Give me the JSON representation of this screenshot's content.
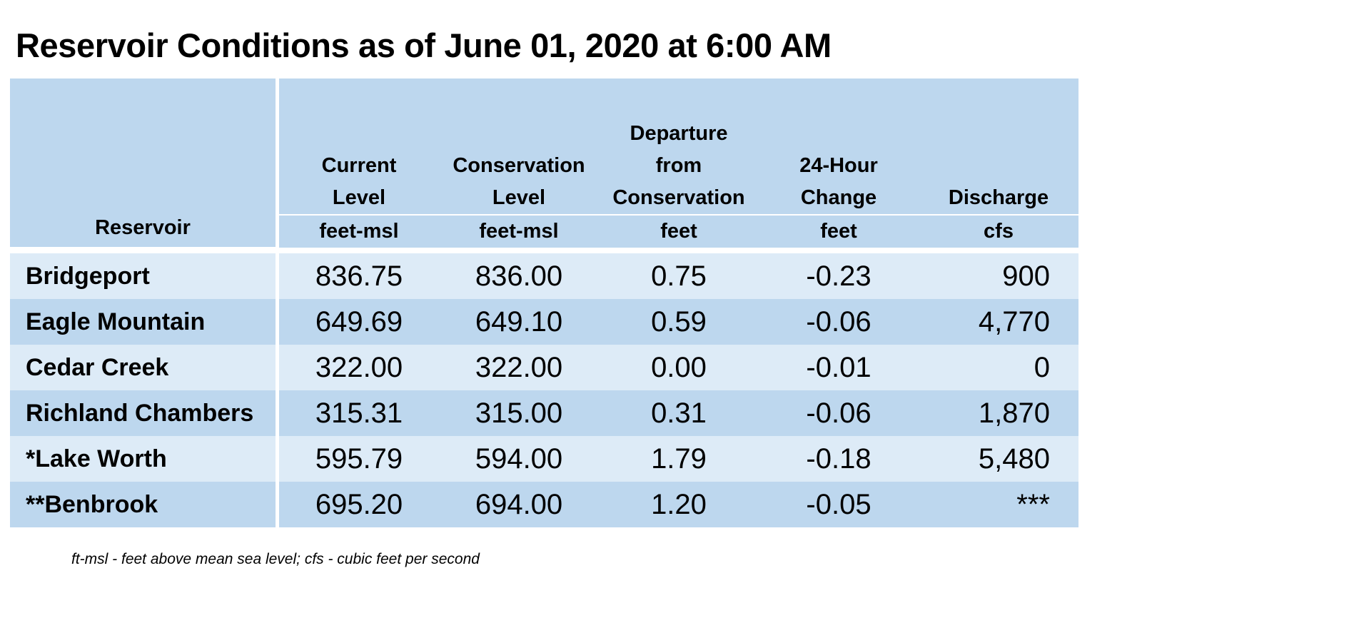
{
  "title": "Reservoir Conditions as of June 01, 2020 at 6:00 AM",
  "table": {
    "columns": [
      {
        "header": "Reservoir",
        "unit": ""
      },
      {
        "header_lines": [
          "Current",
          "Level"
        ],
        "unit": "feet-msl"
      },
      {
        "header_lines": [
          "Conservation",
          "Level"
        ],
        "unit": "feet-msl"
      },
      {
        "header_lines": [
          "Departure",
          "from",
          "Conservation"
        ],
        "unit": "feet"
      },
      {
        "header_lines": [
          "24-Hour",
          "Change"
        ],
        "unit": "feet"
      },
      {
        "header_lines": [
          "Discharge"
        ],
        "unit": "cfs"
      }
    ],
    "rows": [
      {
        "reservoir": "Bridgeport",
        "current": "836.75",
        "conservation": "836.00",
        "departure": "0.75",
        "change": "-0.23",
        "discharge": "900"
      },
      {
        "reservoir": "Eagle Mountain",
        "current": "649.69",
        "conservation": "649.10",
        "departure": "0.59",
        "change": "-0.06",
        "discharge": "4,770"
      },
      {
        "reservoir": "Cedar Creek",
        "current": "322.00",
        "conservation": "322.00",
        "departure": "0.00",
        "change": "-0.01",
        "discharge": "0"
      },
      {
        "reservoir": "Richland Chambers",
        "current": "315.31",
        "conservation": "315.00",
        "departure": "0.31",
        "change": "-0.06",
        "discharge": "1,870"
      },
      {
        "reservoir": "*Lake Worth",
        "current": "595.79",
        "conservation": "594.00",
        "departure": "1.79",
        "change": "-0.18",
        "discharge": "5,480"
      },
      {
        "reservoir": "**Benbrook",
        "current": "695.20",
        "conservation": "694.00",
        "departure": "1.20",
        "change": "-0.05",
        "discharge": "***"
      }
    ]
  },
  "footnote": "ft-msl - feet above mean sea level; cfs - cubic feet per second",
  "colors": {
    "header_bg": "#bdd7ee",
    "row_light": "#ddebf7",
    "row_dark": "#bdd7ee"
  }
}
